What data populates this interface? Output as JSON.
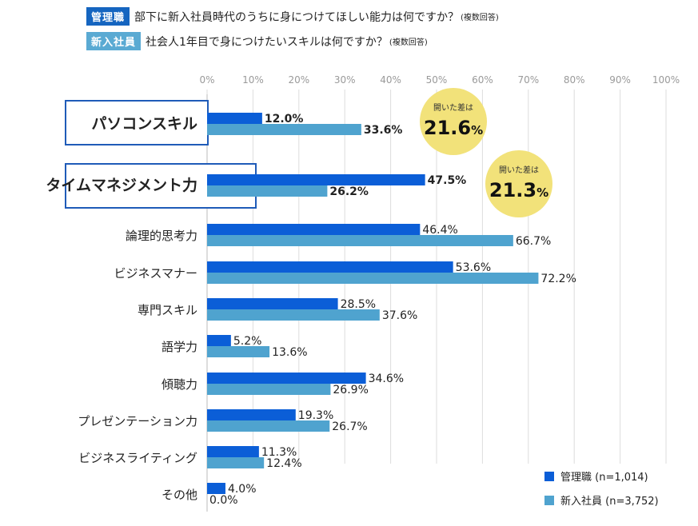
{
  "header": {
    "manager_tag": "管理職",
    "manager_question": "部下に新入社員時代のうちに身につけてほしい能力は何ですか？",
    "newhire_tag": "新入社員",
    "newhire_question": "社会人1年目で身につけたいスキルは何ですか？",
    "note": "(複数回答)"
  },
  "colors": {
    "manager": "#0b5ed7",
    "newhire": "#4fa3cf",
    "tag_manager": "#1565c0",
    "tag_newhire": "#5aaad3",
    "bubble": "#f2e27a",
    "highlight_border": "#1f5bb8",
    "grid": "#dddddd"
  },
  "chart_data": {
    "type": "bar",
    "orientation": "horizontal",
    "xlim": [
      0,
      100
    ],
    "xticks": [
      "0%",
      "10%",
      "20%",
      "30%",
      "40%",
      "50%",
      "60%",
      "70%",
      "80%",
      "90%",
      "100%"
    ],
    "categories": [
      "パソコンスキル",
      "タイムマネジメント力",
      "論理的思考力",
      "ビジネスマナー",
      "専門スキル",
      "語学力",
      "傾聴力",
      "プレゼンテーション力",
      "ビジネスライティング",
      "その他"
    ],
    "series": [
      {
        "name": "管理職 (n=1,014)",
        "values": [
          12.0,
          47.5,
          46.4,
          53.6,
          28.5,
          5.2,
          34.6,
          19.3,
          11.3,
          4.0
        ]
      },
      {
        "name": "新入社員 (n=3,752)",
        "values": [
          33.6,
          26.2,
          66.7,
          72.2,
          37.6,
          13.6,
          26.9,
          26.7,
          12.4,
          0.0
        ]
      }
    ],
    "highlighted": [
      0,
      1
    ],
    "annotations": [
      {
        "category_index": 0,
        "label": "開いた差は",
        "value": "21.6",
        "unit": "%"
      },
      {
        "category_index": 1,
        "label": "開いた差は",
        "value": "21.3",
        "unit": "%"
      }
    ],
    "legend": [
      "管理職 (n=1,014)",
      "新入社員 (n=3,752)"
    ],
    "legend_position": "bottom-right",
    "grid": true
  }
}
